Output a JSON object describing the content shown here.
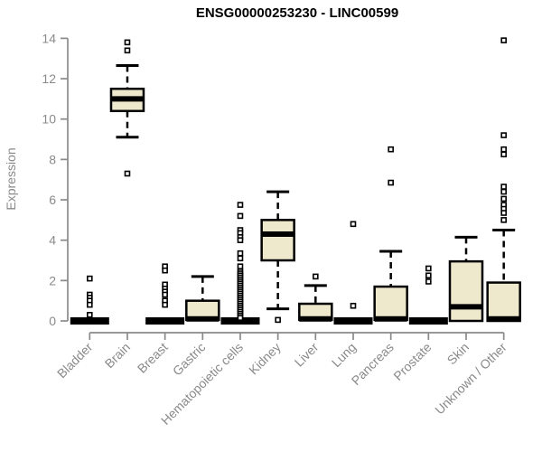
{
  "chart_data": {
    "type": "boxplot",
    "title": "ENSG00000253230 - LINC00599",
    "ylabel": "Expression",
    "ylim": [
      0,
      14
    ],
    "yticks": [
      0,
      2,
      4,
      6,
      8,
      10,
      12,
      14
    ],
    "grid": false,
    "legend_position": "none",
    "categories": [
      "Bladder",
      "Brain",
      "Breast",
      "Gastric",
      "Hematopoietic cells",
      "Kidney",
      "Liver",
      "Lung",
      "Pancreas",
      "Prostate",
      "Skin",
      "Unknown / Other"
    ],
    "series": [
      {
        "category": "Bladder",
        "q1": 0,
        "median": 0,
        "q3": 0,
        "whisker_low": 0,
        "whisker_high": 0,
        "outliers": [
          2.1,
          1.3,
          1.15,
          1.0,
          0.8,
          0.3
        ]
      },
      {
        "category": "Brain",
        "q1": 10.4,
        "median": 11.0,
        "q3": 11.5,
        "whisker_low": 9.1,
        "whisker_high": 12.65,
        "outliers": [
          13.8,
          13.4,
          7.3
        ]
      },
      {
        "category": "Breast",
        "q1": 0,
        "median": 0,
        "q3": 0,
        "whisker_low": 0,
        "whisker_high": 0,
        "outliers": [
          2.7,
          2.5,
          1.8,
          1.6,
          1.45,
          1.3,
          1.0,
          0.8
        ]
      },
      {
        "category": "Gastric",
        "q1": 0.05,
        "median": 0.1,
        "q3": 1.0,
        "whisker_low": 0.05,
        "whisker_high": 2.2,
        "outliers": []
      },
      {
        "category": "Hematopoietic cells",
        "q1": 0,
        "median": 0,
        "q3": 0,
        "whisker_low": 0,
        "whisker_high": 0,
        "outliers": [
          5.75,
          5.2,
          4.5,
          4.35,
          4.15,
          4.0,
          3.35,
          3.1,
          2.7,
          2.45,
          2.35,
          2.25,
          2.15,
          2.05,
          1.95,
          1.85,
          1.75,
          1.65,
          1.55,
          1.45,
          1.35,
          1.25,
          1.15,
          1.05,
          0.95,
          0.85,
          0.75,
          0.65,
          0.55,
          0.45,
          0.35,
          0.25,
          0.15
        ]
      },
      {
        "category": "Kidney",
        "q1": 3.0,
        "median": 4.3,
        "q3": 5.0,
        "whisker_low": 0.6,
        "whisker_high": 6.4,
        "outliers": [
          0.05
        ]
      },
      {
        "category": "Liver",
        "q1": 0.05,
        "median": 0.1,
        "q3": 0.85,
        "whisker_low": 0.05,
        "whisker_high": 1.75,
        "outliers": [
          2.2
        ]
      },
      {
        "category": "Lung",
        "q1": 0,
        "median": 0,
        "q3": 0,
        "whisker_low": 0,
        "whisker_high": 0,
        "outliers": [
          4.8,
          0.75
        ]
      },
      {
        "category": "Pancreas",
        "q1": 0.05,
        "median": 0.1,
        "q3": 1.7,
        "whisker_low": 0.05,
        "whisker_high": 3.45,
        "outliers": [
          8.5,
          6.85
        ]
      },
      {
        "category": "Prostate",
        "q1": 0,
        "median": 0,
        "q3": 0,
        "whisker_low": 0,
        "whisker_high": 0,
        "outliers": [
          2.6,
          2.25,
          1.95
        ]
      },
      {
        "category": "Skin",
        "q1": 0,
        "median": 0.7,
        "q3": 2.95,
        "whisker_low": 0,
        "whisker_high": 4.15,
        "outliers": []
      },
      {
        "category": "Unknown / Other",
        "q1": 0,
        "median": 0.1,
        "q3": 1.9,
        "whisker_low": 0,
        "whisker_high": 4.5,
        "outliers": [
          13.9,
          9.2,
          8.5,
          8.25,
          6.65,
          6.4,
          6.05,
          5.75,
          5.55,
          5.35,
          5.0
        ]
      }
    ],
    "colors": {
      "box_fill": "#EEE8CD",
      "line": "#000000",
      "axis": "#8A8A8A",
      "tick_label": "#8A8A8A",
      "title": "#000000",
      "background": "#FFFFFF"
    }
  }
}
